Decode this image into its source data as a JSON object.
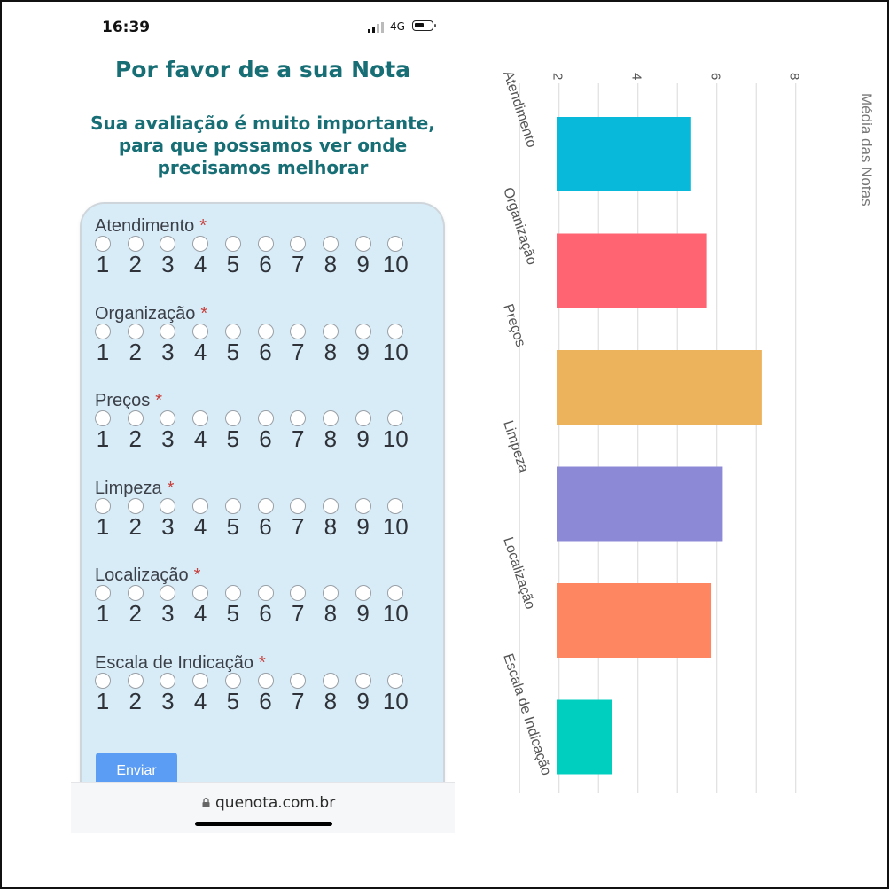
{
  "phone": {
    "time": "16:39",
    "network": "4G",
    "title": "Por favor de a sua Nota",
    "subtitle_lines": [
      "Sua avaliação é muito importante,",
      "para que possamos ver onde",
      "precisamos melhorar"
    ],
    "required_mark": "*",
    "options": [
      "1",
      "2",
      "3",
      "4",
      "5",
      "6",
      "7",
      "8",
      "9",
      "10"
    ],
    "questions": [
      {
        "label": "Atendimento"
      },
      {
        "label": "Organização"
      },
      {
        "label": "Preços"
      },
      {
        "label": "Limpeza"
      },
      {
        "label": "Localização"
      },
      {
        "label": "Escala de Indicação"
      }
    ],
    "submit_label": "Enviar",
    "url": "quenota.com.br"
  },
  "chart_data": {
    "type": "bar",
    "orientation": "rotated 90° clockwise (vertical bars shown sideways)",
    "categories": [
      "Atendimento",
      "Organização",
      "Preços",
      "Limpeza",
      "Localização",
      "Escala de Indicação"
    ],
    "values": [
      5.4,
      5.8,
      7.2,
      6.2,
      5.9,
      3.4
    ],
    "colors": [
      "#08b9d9",
      "#fe6472",
      "#ecb25c",
      "#8c8ad6",
      "#fe8660",
      "#00cfc0"
    ],
    "ylabel": "Média das Notas",
    "yticks": [
      2,
      4,
      6,
      8
    ],
    "ylim": [
      1,
      8.5
    ],
    "grid": true
  }
}
